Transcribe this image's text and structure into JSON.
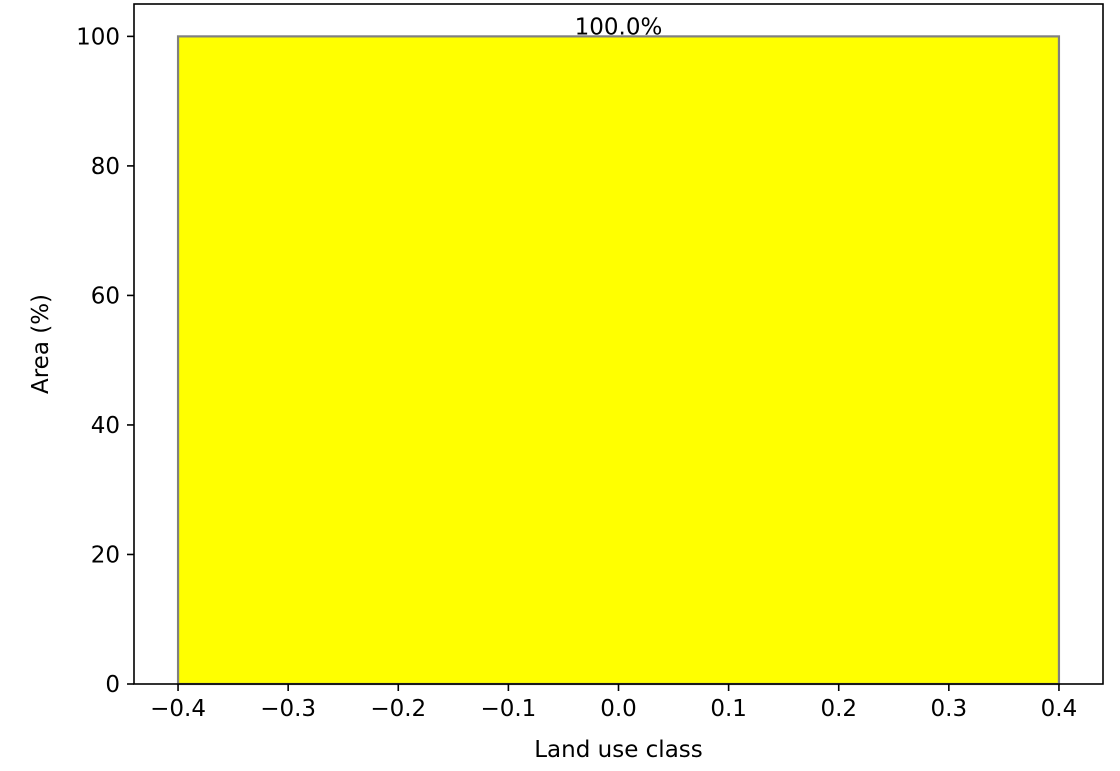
{
  "chart_data": {
    "type": "bar",
    "title": "",
    "xlabel": "Land use class",
    "ylabel": "Area (%)",
    "xlim": [
      -0.44,
      0.44
    ],
    "ylim": [
      0,
      105
    ],
    "x_ticks": [
      -0.4,
      -0.3,
      -0.2,
      -0.1,
      0.0,
      0.1,
      0.2,
      0.3,
      0.4
    ],
    "x_tick_labels": [
      "−0.4",
      "−0.3",
      "−0.2",
      "−0.1",
      "0.0",
      "0.1",
      "0.2",
      "0.3",
      "0.4"
    ],
    "y_ticks": [
      0,
      20,
      40,
      60,
      80,
      100
    ],
    "y_tick_labels": [
      "0",
      "20",
      "40",
      "60",
      "80",
      "100"
    ],
    "bars": [
      {
        "x_start": -0.4,
        "x_end": 0.4,
        "value": 100.0,
        "label": "100.0%",
        "color": "#ffff00",
        "edge_color": "#808080"
      }
    ],
    "grid": false
  }
}
